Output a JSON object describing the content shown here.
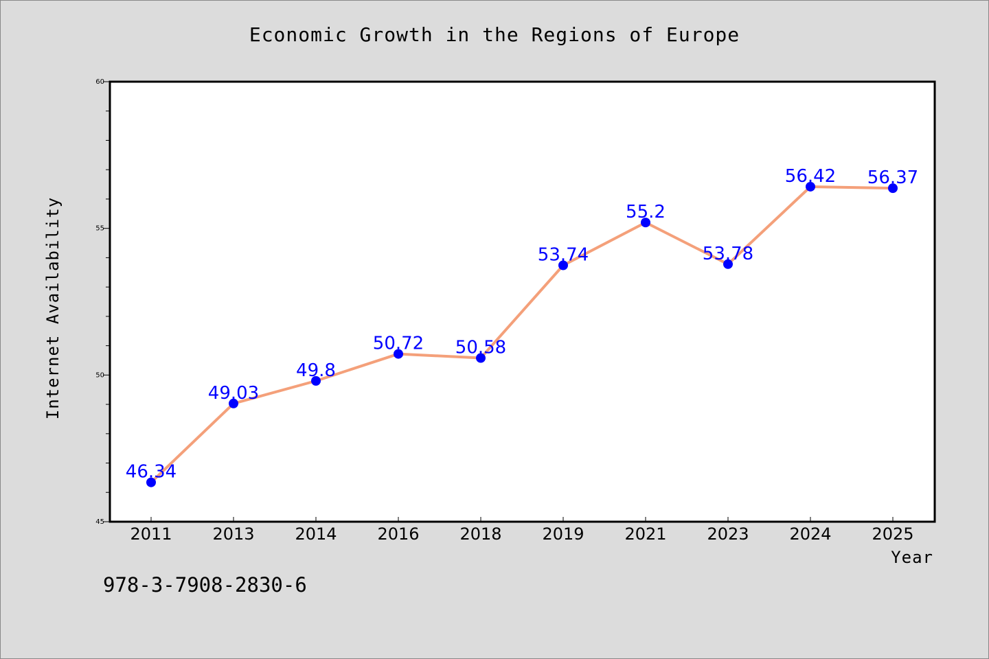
{
  "chart_data": {
    "type": "line",
    "title": "Economic Growth in the Regions of Europe",
    "xlabel": "Year",
    "ylabel": "Internet Availability",
    "categories": [
      "2011",
      "2013",
      "2014",
      "2016",
      "2018",
      "2019",
      "2021",
      "2023",
      "2024",
      "2025"
    ],
    "series": [
      {
        "values": [
          46.34,
          49.03,
          49.8,
          50.72,
          50.58,
          53.74,
          55.2,
          53.78,
          56.42,
          56.37
        ]
      }
    ],
    "data_labels": [
      "46.34",
      "49.03",
      "49.8",
      "50.72",
      "50.58",
      "53.74",
      "55.2",
      "53.78",
      "56.42",
      "56.37"
    ],
    "ylim": [
      45,
      60
    ],
    "yticks": [
      "45",
      "50",
      "55",
      "60"
    ],
    "grid": false,
    "line_color": "#f4a07a",
    "marker_color": "#0000ff",
    "label_color": "#0000ff",
    "plot_background": "#ffffff",
    "figure_background": "#dcdcdc"
  },
  "annotation": "978-3-7908-2830-6"
}
